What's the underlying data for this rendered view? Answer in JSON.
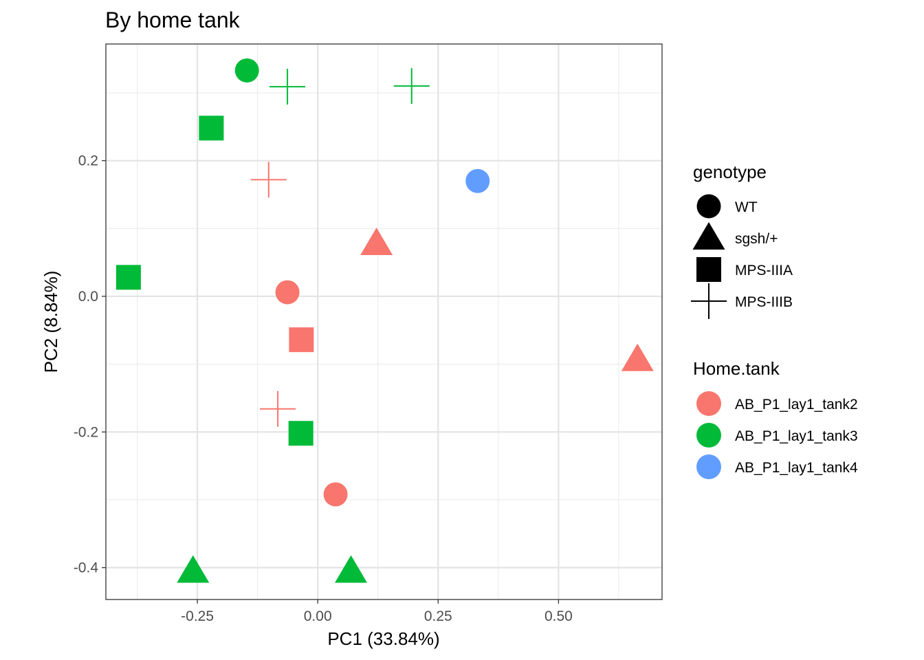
{
  "chart_data": {
    "type": "scatter",
    "title": "By home tank",
    "xlabel": "PC1 (33.84%)",
    "ylabel": "PC2 (8.84%)",
    "xlim": [
      -0.44,
      0.715
    ],
    "ylim": [
      -0.447,
      0.372
    ],
    "x_ticks": [
      -0.25,
      0.0,
      0.25,
      0.5
    ],
    "x_tick_labels": [
      "-0.25",
      "0.00",
      "0.25",
      "0.50"
    ],
    "y_ticks": [
      -0.4,
      -0.2,
      0.0,
      0.2
    ],
    "y_tick_labels": [
      "-0.4",
      "-0.2",
      "0.0",
      "0.2"
    ],
    "grid": true,
    "legend_placement": "right",
    "shape_legend": {
      "title": "genotype",
      "entries": [
        {
          "label": "WT",
          "shape": "circle"
        },
        {
          "label": "sgsh/+",
          "shape": "triangle"
        },
        {
          "label": "MPS-IIIA",
          "shape": "square"
        },
        {
          "label": "MPS-IIIB",
          "shape": "plus"
        }
      ]
    },
    "color_legend": {
      "title": "Home.tank",
      "entries": [
        {
          "label": "AB_P1_lay1_tank2",
          "color": "#F8766D"
        },
        {
          "label": "AB_P1_lay1_tank3",
          "color": "#00BA38"
        },
        {
          "label": "AB_P1_lay1_tank4",
          "color": "#619CFF"
        }
      ]
    },
    "points": [
      {
        "x": -0.147,
        "y": 0.333,
        "genotype": "WT",
        "tank": "AB_P1_lay1_tank3"
      },
      {
        "x": -0.063,
        "y": 0.309,
        "genotype": "MPS-IIIB",
        "tank": "AB_P1_lay1_tank3"
      },
      {
        "x": 0.195,
        "y": 0.31,
        "genotype": "MPS-IIIB",
        "tank": "AB_P1_lay1_tank3"
      },
      {
        "x": -0.221,
        "y": 0.248,
        "genotype": "MPS-IIIA",
        "tank": "AB_P1_lay1_tank3"
      },
      {
        "x": -0.102,
        "y": 0.172,
        "genotype": "MPS-IIIB",
        "tank": "AB_P1_lay1_tank2"
      },
      {
        "x": 0.332,
        "y": 0.17,
        "genotype": "WT",
        "tank": "AB_P1_lay1_tank4"
      },
      {
        "x": 0.122,
        "y": 0.078,
        "genotype": "sgsh/+",
        "tank": "AB_P1_lay1_tank2"
      },
      {
        "x": -0.393,
        "y": 0.028,
        "genotype": "MPS-IIIA",
        "tank": "AB_P1_lay1_tank3"
      },
      {
        "x": -0.063,
        "y": 0.006,
        "genotype": "WT",
        "tank": "AB_P1_lay1_tank2"
      },
      {
        "x": -0.034,
        "y": -0.064,
        "genotype": "MPS-IIIA",
        "tank": "AB_P1_lay1_tank2"
      },
      {
        "x": 0.664,
        "y": -0.093,
        "genotype": "sgsh/+",
        "tank": "AB_P1_lay1_tank2"
      },
      {
        "x": -0.083,
        "y": -0.166,
        "genotype": "MPS-IIIB",
        "tank": "AB_P1_lay1_tank2"
      },
      {
        "x": -0.035,
        "y": -0.202,
        "genotype": "MPS-IIIA",
        "tank": "AB_P1_lay1_tank3"
      },
      {
        "x": 0.037,
        "y": -0.292,
        "genotype": "WT",
        "tank": "AB_P1_lay1_tank2"
      },
      {
        "x": -0.259,
        "y": -0.405,
        "genotype": "sgsh/+",
        "tank": "AB_P1_lay1_tank3"
      },
      {
        "x": 0.069,
        "y": -0.405,
        "genotype": "sgsh/+",
        "tank": "AB_P1_lay1_tank3"
      }
    ]
  }
}
